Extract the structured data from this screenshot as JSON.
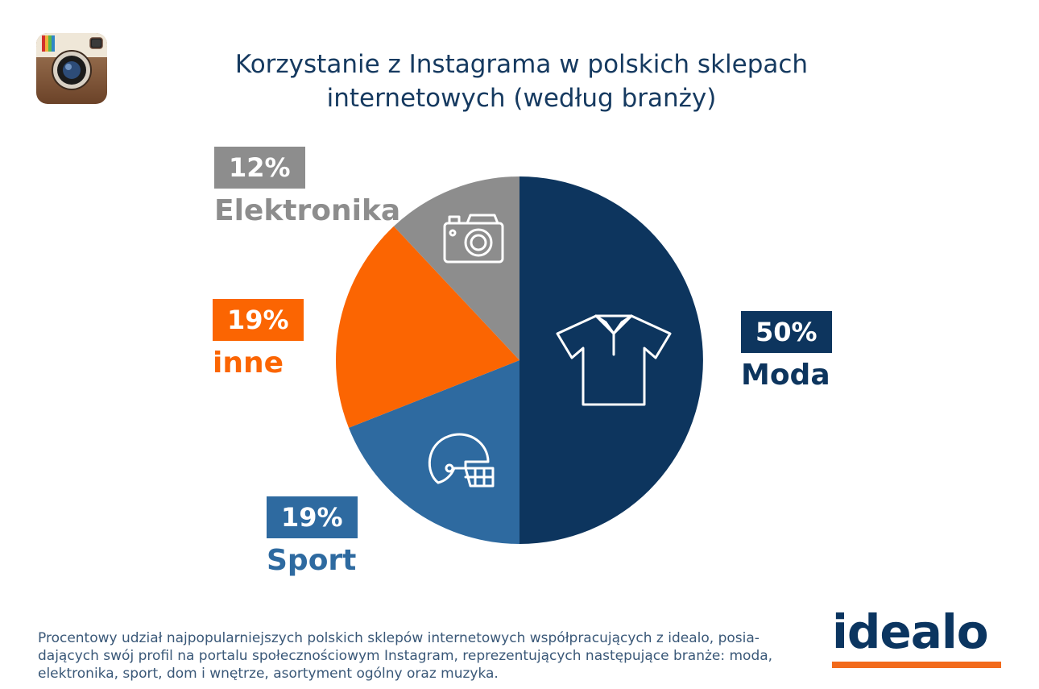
{
  "header": {
    "title_line1": "Korzystanie z Instagrama w polskich sklepach",
    "title_line2": "internetowych (według branży)"
  },
  "logos": {
    "instagram_icon": "instagram-icon",
    "brand": "idealo"
  },
  "chart_data": {
    "type": "pie",
    "categories": [
      "Moda",
      "Sport",
      "inne",
      "Elektronika"
    ],
    "values": [
      50,
      19,
      19,
      12
    ],
    "labels": [
      "50%",
      "19%",
      "19%",
      "12%"
    ],
    "colors": [
      "#0d355e",
      "#2e6aa0",
      "#fb6502",
      "#8d8d8d"
    ],
    "icons": [
      "shirt-icon",
      "helmet-icon",
      "",
      "camera-icon"
    ],
    "start": "12 o'clock, clockwise"
  },
  "footnote": "Procentowy udział najpopularniejszych polskich sklepów internetowych współpracujących z idealo, posia-dających swój profil na portalu społecznościowym Instagram, reprezentujących następujące branże: moda, elektronika, sport, dom i wnętrze, asortyment ogólny oraz muzyka."
}
